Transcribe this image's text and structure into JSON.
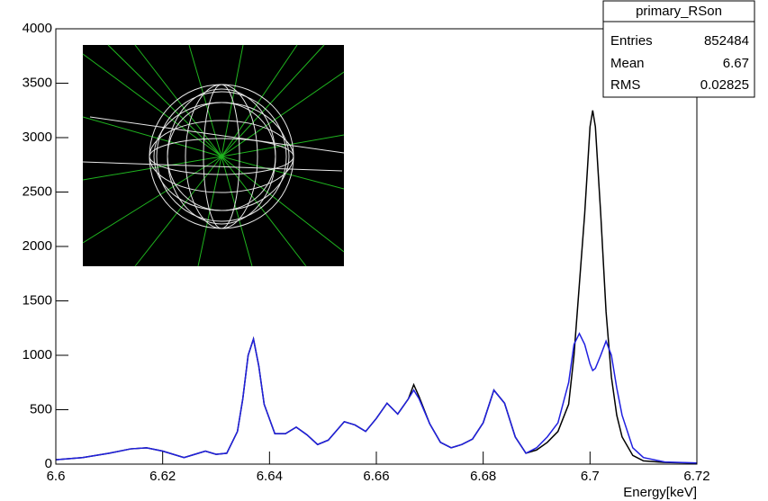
{
  "chart_data": {
    "type": "line",
    "x_label": "Energy[keV]",
    "x": [
      6.6,
      6.605,
      6.61,
      6.614,
      6.617,
      6.62,
      6.624,
      6.626,
      6.628,
      6.63,
      6.632,
      6.634,
      6.635,
      6.636,
      6.637,
      6.638,
      6.639,
      6.641,
      6.643,
      6.645,
      6.647,
      6.649,
      6.651,
      6.654,
      6.656,
      6.658,
      6.66,
      6.662,
      6.664,
      6.666,
      6.667,
      6.668,
      6.67,
      6.672,
      6.674,
      6.676,
      6.678,
      6.68,
      6.682,
      6.684,
      6.686,
      6.688,
      6.69,
      6.692,
      6.694,
      6.696,
      6.697,
      6.698,
      6.699,
      6.7,
      6.7005,
      6.701,
      6.702,
      6.703,
      6.704,
      6.705,
      6.706,
      6.708,
      6.71,
      6.714,
      6.72
    ],
    "series": [
      {
        "color": "#000000",
        "values": [
          40,
          60,
          100,
          140,
          150,
          120,
          60,
          90,
          120,
          90,
          100,
          300,
          600,
          1000,
          1150,
          900,
          550,
          280,
          280,
          340,
          270,
          180,
          220,
          390,
          360,
          300,
          420,
          560,
          460,
          600,
          730,
          620,
          370,
          200,
          150,
          180,
          230,
          380,
          680,
          560,
          250,
          100,
          130,
          200,
          300,
          550,
          1000,
          1650,
          2300,
          3100,
          3250,
          3100,
          2300,
          1400,
          800,
          450,
          250,
          80,
          30,
          15,
          10
        ]
      },
      {
        "color": "#2020e0",
        "values": [
          40,
          60,
          100,
          140,
          150,
          120,
          60,
          90,
          120,
          90,
          100,
          300,
          600,
          1000,
          1150,
          900,
          550,
          280,
          280,
          340,
          270,
          180,
          220,
          390,
          360,
          300,
          420,
          560,
          460,
          600,
          680,
          600,
          370,
          200,
          150,
          180,
          230,
          380,
          680,
          560,
          250,
          100,
          150,
          250,
          380,
          750,
          1100,
          1200,
          1100,
          920,
          860,
          880,
          1000,
          1130,
          1000,
          700,
          450,
          150,
          60,
          20,
          10
        ]
      }
    ],
    "xlim": [
      6.6,
      6.72
    ],
    "xticks": [
      6.6,
      6.62,
      6.64,
      6.66,
      6.68,
      6.7,
      6.72
    ],
    "ylim": [
      0,
      4000
    ],
    "yticks": [
      0,
      500,
      1000,
      1500,
      2000,
      2500,
      3000,
      3500,
      4000
    ],
    "stats": {
      "title": "primary_RSon",
      "rows": [
        {
          "label": "Entries",
          "value": 852484
        },
        {
          "label": "Mean",
          "value": 6.67
        },
        {
          "label": "RMS",
          "value": 0.02825
        }
      ]
    }
  }
}
